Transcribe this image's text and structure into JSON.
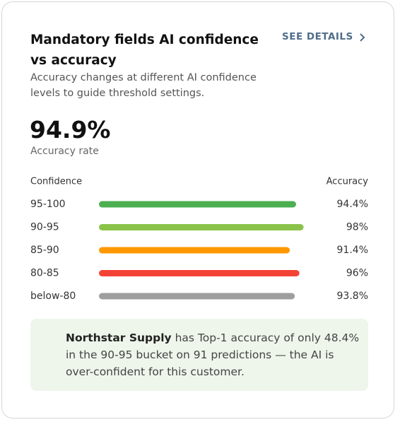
{
  "header": {
    "title": "Mandatory fields AI confidence vs accuracy",
    "link": "SEE DETAILS"
  },
  "subtitle": "Accuracy changes at different AI confidence levels to guide threshold settings.",
  "stat": {
    "value": "94.9%",
    "label": "Accuracy rate"
  },
  "chart_data": {
    "type": "bar",
    "orientation": "horizontal",
    "category_header": "Confidence",
    "value_header": "Accuracy",
    "categories": [
      "95-100",
      "90-95",
      "85-90",
      "80-85",
      "below-80"
    ],
    "values": [
      94.4,
      98,
      91.4,
      96,
      93.8
    ],
    "value_labels": [
      "94.4%",
      "98%",
      "91.4%",
      "96%",
      "93.8%"
    ],
    "colors": [
      "#4caf50",
      "#8bc34a",
      "#ff9800",
      "#f44336",
      "#9e9e9e"
    ],
    "xlim": [
      0,
      100
    ]
  },
  "callout": {
    "name": "Northstar Supply",
    "text": "has Top-1 accuracy of only 48.4% in the 90-95 bucket on 91 predictions — the AI is over-confident for this customer."
  }
}
